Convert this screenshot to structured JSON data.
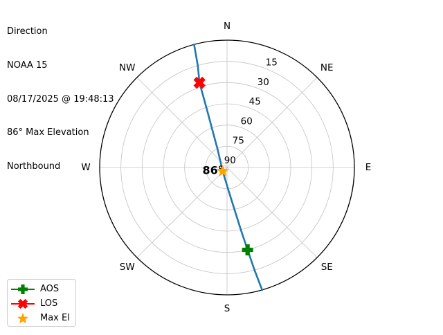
{
  "header": {
    "lines": [
      "Direction",
      "NOAA 15",
      "08/17/2025 @ 19:48:13",
      "86° Max Elevation",
      "Northbound"
    ]
  },
  "legend": {
    "items": [
      {
        "label": "AOS",
        "marker": "plus-icon",
        "color": "#008000"
      },
      {
        "label": "LOS",
        "marker": "x-icon",
        "color": "#ff0000"
      },
      {
        "label": "Max El",
        "marker": "star-icon",
        "color": "#ffa500"
      }
    ]
  },
  "chart_data": {
    "type": "polar-track",
    "title": "Direction",
    "compass_labels": [
      "N",
      "NE",
      "E",
      "SE",
      "S",
      "SW",
      "W",
      "NW"
    ],
    "compass_azimuths_deg": [
      0,
      45,
      90,
      135,
      180,
      225,
      270,
      315
    ],
    "elevation_tick_labels": [
      "15",
      "30",
      "45",
      "60",
      "75",
      "90"
    ],
    "elevation_ticks_deg": [
      15,
      30,
      45,
      60,
      75,
      90
    ],
    "horizon_elevation_deg": 0,
    "grid_color": "#c2c2c2",
    "outline_color": "#000000",
    "track": {
      "name": "satellite-pass-track",
      "color": "#1f77b4",
      "points_az_el": [
        [
          345,
          0
        ],
        [
          344,
          15
        ],
        [
          342,
          27
        ],
        [
          341,
          45
        ],
        [
          339,
          60
        ],
        [
          333,
          75
        ],
        [
          230,
          86
        ],
        [
          177.5,
          75
        ],
        [
          170,
          60
        ],
        [
          167.5,
          45
        ],
        [
          166,
          30
        ],
        [
          165,
          15
        ],
        [
          164,
          0
        ]
      ]
    },
    "markers": [
      {
        "id": "aos",
        "shape": "plus",
        "color": "#008000",
        "az": 166,
        "el": 30,
        "label": ""
      },
      {
        "id": "los",
        "shape": "x",
        "color": "#ff0000",
        "az": 342,
        "el": 27,
        "label": ""
      },
      {
        "id": "max_el",
        "shape": "star",
        "color": "#ffa500",
        "az": 230,
        "el": 86,
        "label": "86°"
      }
    ]
  }
}
